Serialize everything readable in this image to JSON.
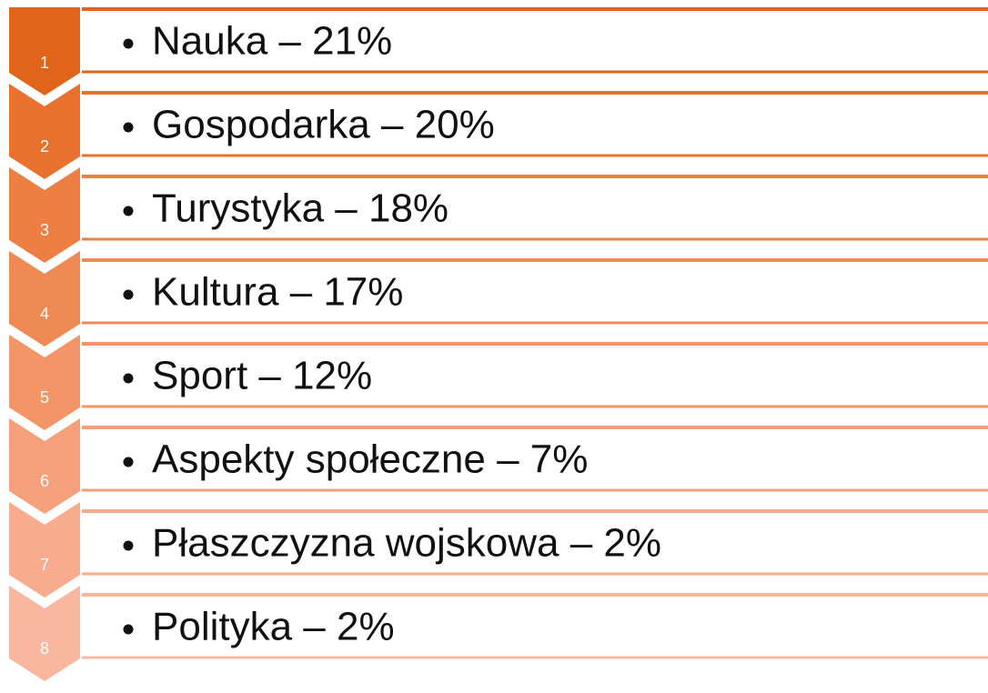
{
  "items": [
    {
      "number": "1",
      "text": "Nauka – 21%"
    },
    {
      "number": "2",
      "text": "Gospodarka – 20%"
    },
    {
      "number": "3",
      "text": "Turystyka – 18%"
    },
    {
      "number": "4",
      "text": "Kultura – 17%"
    },
    {
      "number": "5",
      "text": "Sport – 12%"
    },
    {
      "number": "6",
      "text": "Aspekty społeczne – 7%"
    },
    {
      "number": "7",
      "text": "Płaszczyzna wojskowa – 2%"
    },
    {
      "number": "8",
      "text": "Polityka – 2%"
    }
  ]
}
